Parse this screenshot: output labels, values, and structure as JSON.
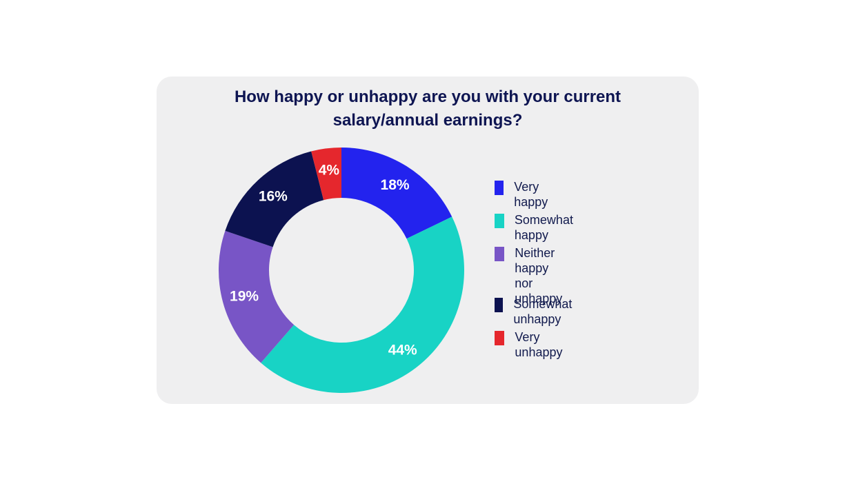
{
  "chart_data": {
    "type": "pie",
    "title": "How happy or unhappy are you with your current salary/annual earnings?",
    "title_lines": [
      "How happy or unhappy are you with your current",
      "salary/annual earnings?"
    ],
    "slices": [
      {
        "name": "Very happy",
        "value": 18,
        "label": "18%",
        "color": "#2323ee"
      },
      {
        "name": "Somewhat happy",
        "value": 44,
        "label": "44%",
        "color": "#18d3c5"
      },
      {
        "name": "Neither happy nor unhappy",
        "value": 19,
        "label": "19%",
        "color": "#7855c6"
      },
      {
        "name": "Somewhat unhappy",
        "value": 16,
        "label": "16%",
        "color": "#0c1250"
      },
      {
        "name": "Very unhappy",
        "value": 4,
        "label": "4%",
        "color": "#e5272d"
      }
    ],
    "legend": {
      "placement": "right",
      "items": [
        {
          "lines": [
            "Very happy"
          ],
          "color": "#2323ee"
        },
        {
          "lines": [
            "Somewhat happy"
          ],
          "color": "#18d3c5"
        },
        {
          "lines": [
            "Neither happy",
            "nor unhappy"
          ],
          "color": "#7855c6"
        },
        {
          "lines": [
            "Somewhat unhappy"
          ],
          "color": "#0c1250"
        },
        {
          "lines": [
            "Very unhappy"
          ],
          "color": "#e5272d"
        }
      ]
    },
    "donut": true
  },
  "colors": {
    "card_background": "#efeff0",
    "title_text": "#0e1552",
    "slice_label_text": "#ffffff"
  }
}
